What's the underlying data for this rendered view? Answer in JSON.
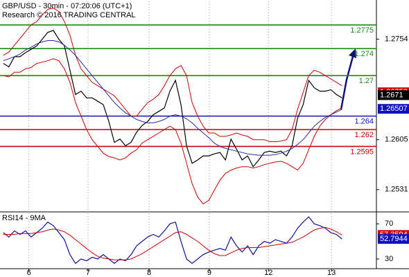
{
  "chart_data": [
    {
      "type": "line",
      "title": "GBP/USD - 30min - 07:20:06 (UTC+1)",
      "subtitle": "Research © 2016 TRADING CENTRAL",
      "xlim": [
        -0.6,
        67.2
      ],
      "xticks": [
        {
          "value": 4.6,
          "label": "6"
        },
        {
          "value": 15.25,
          "label": "7"
        },
        {
          "value": 26.25,
          "label": "8"
        },
        {
          "value": 37.1,
          "label": "9"
        },
        {
          "value": 47.75,
          "label": "12"
        },
        {
          "value": 59.1,
          "label": "13"
        }
      ],
      "ylim": [
        1.2499,
        1.281
      ],
      "yticks": [
        1.2531,
        1.2605,
        1.2754
      ],
      "series": [
        {
          "color": "#000000",
          "values": [
            1.2718,
            1.2713,
            1.2728,
            1.2728,
            1.2734,
            1.2739,
            1.2744,
            1.2754,
            1.2764,
            1.2767,
            1.2754,
            1.2744,
            1.2708,
            1.2672,
            1.2677,
            1.2667,
            1.2667,
            1.2662,
            1.2657,
            1.2632,
            1.2601,
            1.2606,
            1.2596,
            1.2601,
            1.2616,
            1.2626,
            1.2632,
            1.2642,
            1.2647,
            1.2652,
            1.2677,
            1.2693,
            1.2657,
            1.2596,
            1.257,
            1.2575,
            1.2581,
            1.2581,
            1.2584,
            1.2586,
            1.2575,
            1.2606,
            1.2591,
            1.2575,
            1.2581,
            1.2565,
            1.2575,
            1.2586,
            1.2588,
            1.2586,
            1.2588,
            1.2581,
            1.2596,
            1.2637,
            1.2657,
            1.2693,
            1.2682,
            1.2677,
            1.2677,
            1.2679,
            1.2672,
            1.2667
          ]
        },
        {
          "color": "#cc0000",
          "values": [
            1.273,
            1.2735,
            1.2745,
            1.2755,
            1.2765,
            1.2775,
            1.278,
            1.279,
            1.2798,
            1.28,
            1.2795,
            1.278,
            1.276,
            1.273,
            1.271,
            1.27,
            1.269,
            1.2685,
            1.268,
            1.2675,
            1.267,
            1.266,
            1.265,
            1.264,
            1.264,
            1.265,
            1.266,
            1.2665,
            1.2672,
            1.2685,
            1.27,
            1.271,
            1.2715,
            1.27,
            1.266,
            1.264,
            1.2625,
            1.2615,
            1.2615,
            1.261,
            1.261,
            1.2612,
            1.2615,
            1.2612,
            1.261,
            1.2605,
            1.2605,
            1.2605,
            1.2602,
            1.2602,
            1.2603,
            1.2605,
            1.262,
            1.265,
            1.2675,
            1.27,
            1.2708,
            1.2705,
            1.27,
            1.2695,
            1.269,
            1.2685
          ]
        },
        {
          "color": "#cc0000",
          "values": [
            1.27,
            1.2698,
            1.2705,
            1.2705,
            1.271,
            1.2712,
            1.2718,
            1.272,
            1.2722,
            1.2725,
            1.2722,
            1.271,
            1.269,
            1.266,
            1.264,
            1.262,
            1.2605,
            1.2595,
            1.2585,
            1.258,
            1.2578,
            1.2575,
            1.2578,
            1.2585,
            1.259,
            1.26,
            1.2605,
            1.261,
            1.2615,
            1.262,
            1.2625,
            1.262,
            1.26,
            1.257,
            1.254,
            1.252,
            1.251,
            1.2515,
            1.253,
            1.2545,
            1.2555,
            1.256,
            1.2563,
            1.2565,
            1.2565,
            1.2563,
            1.2565,
            1.2568,
            1.257,
            1.2572,
            1.2573,
            1.257,
            1.2565,
            1.256,
            1.257,
            1.259,
            1.261,
            1.2625,
            1.2635,
            1.2642,
            1.2648,
            1.2652
          ]
        },
        {
          "color": "#2a2aa8",
          "values": [
            1.2722,
            1.2725,
            1.2728,
            1.2732,
            1.2738,
            1.2742,
            1.2747,
            1.275,
            1.2752,
            1.2752,
            1.275,
            1.2745,
            1.2738,
            1.273,
            1.272,
            1.271,
            1.27,
            1.269,
            1.268,
            1.267,
            1.266,
            1.2652,
            1.2645,
            1.264,
            1.2635,
            1.2632,
            1.263,
            1.263,
            1.2632,
            1.2635,
            1.264,
            1.2642,
            1.264,
            1.2636,
            1.263,
            1.2622,
            1.2615,
            1.2608,
            1.26,
            1.2595,
            1.2592,
            1.259,
            1.2588,
            1.2586,
            1.2584,
            1.2583,
            1.2582,
            1.2582,
            1.2582,
            1.2583,
            1.2585,
            1.2588,
            1.2592,
            1.2598,
            1.2605,
            1.2615,
            1.2625,
            1.2632,
            1.2638,
            1.2642,
            1.2646,
            1.265
          ]
        }
      ],
      "levels": [
        {
          "value": 1.2775,
          "color": "#1a8a1a"
        },
        {
          "value": 1.274,
          "color": "#1a8a1a"
        },
        {
          "value": 1.27,
          "color": "#1a8a1a"
        },
        {
          "value": 1.264,
          "color": "#1010c0"
        },
        {
          "value": 1.262,
          "color": "#cc0000"
        },
        {
          "value": 1.2595,
          "color": "#cc0000"
        }
      ],
      "price_tags": [
        {
          "value": 1.26753,
          "color": "#cc0000"
        },
        {
          "value": 1.2671,
          "color": "#000000"
        },
        {
          "value": 1.26507,
          "color": "#1010c0"
        }
      ]
    },
    {
      "type": "line",
      "title": "RSI14 - 9MA",
      "xlim": [
        -0.6,
        67.2
      ],
      "ylim": [
        19,
        82
      ],
      "yticks": [
        30,
        70
      ],
      "series": [
        {
          "color": "#1010a0",
          "values": [
            60,
            55,
            62,
            58,
            62,
            55,
            60,
            65,
            72,
            68,
            60,
            52,
            35,
            25,
            30,
            28,
            32,
            30,
            35,
            30,
            25,
            30,
            28,
            35,
            45,
            50,
            55,
            58,
            55,
            62,
            70,
            72,
            50,
            30,
            25,
            30,
            35,
            38,
            40,
            42,
            40,
            55,
            45,
            38,
            45,
            35,
            45,
            50,
            48,
            52,
            50,
            48,
            55,
            65,
            72,
            78,
            70,
            68,
            65,
            60,
            58,
            52.7944
          ]
        },
        {
          "color": "#cc0000",
          "values": [
            58,
            58,
            58,
            59,
            59,
            59,
            60,
            61,
            63,
            64,
            63,
            61,
            57,
            52,
            47,
            42,
            37,
            33,
            31,
            30,
            29,
            29,
            29,
            30,
            33,
            36,
            40,
            44,
            48,
            52,
            56,
            60,
            61,
            58,
            54,
            50,
            45,
            40,
            36,
            34,
            34,
            37,
            40,
            42,
            43,
            43,
            43,
            44,
            45,
            46,
            47,
            48,
            49,
            52,
            55,
            59,
            63,
            65,
            66,
            64,
            61,
            57.3594
          ]
        }
      ],
      "price_tags": [
        {
          "value": 57.3594,
          "color": "#cc0000"
        },
        {
          "value": 52.7944,
          "color": "#1010c0"
        }
      ]
    }
  ]
}
